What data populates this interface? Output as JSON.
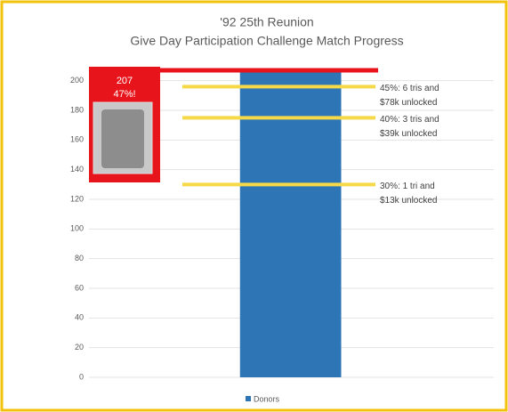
{
  "chart_data": {
    "type": "bar",
    "title": "'92 25th Reunion",
    "subtitle": "Give Day Participation Challenge Match Progress",
    "categories": [
      null
    ],
    "series": [
      {
        "name": "Donors",
        "color": "#2e75b6",
        "values": [
          207
        ]
      }
    ],
    "ylim": [
      0,
      210
    ],
    "yticks": [
      0,
      20,
      40,
      60,
      80,
      100,
      120,
      140,
      160,
      180,
      200
    ],
    "grid": true,
    "legend": "bottom",
    "current_note": "47%!",
    "thresholds": [
      {
        "value": 196,
        "label": [
          "45%: 6 tris and",
          "$78k unlocked"
        ]
      },
      {
        "value": 175,
        "label": [
          "40%: 3 tris and",
          "$39k unlocked"
        ]
      },
      {
        "value": 130,
        "label": [
          "30%: 1 tri and",
          "$13k unlocked"
        ]
      }
    ]
  }
}
